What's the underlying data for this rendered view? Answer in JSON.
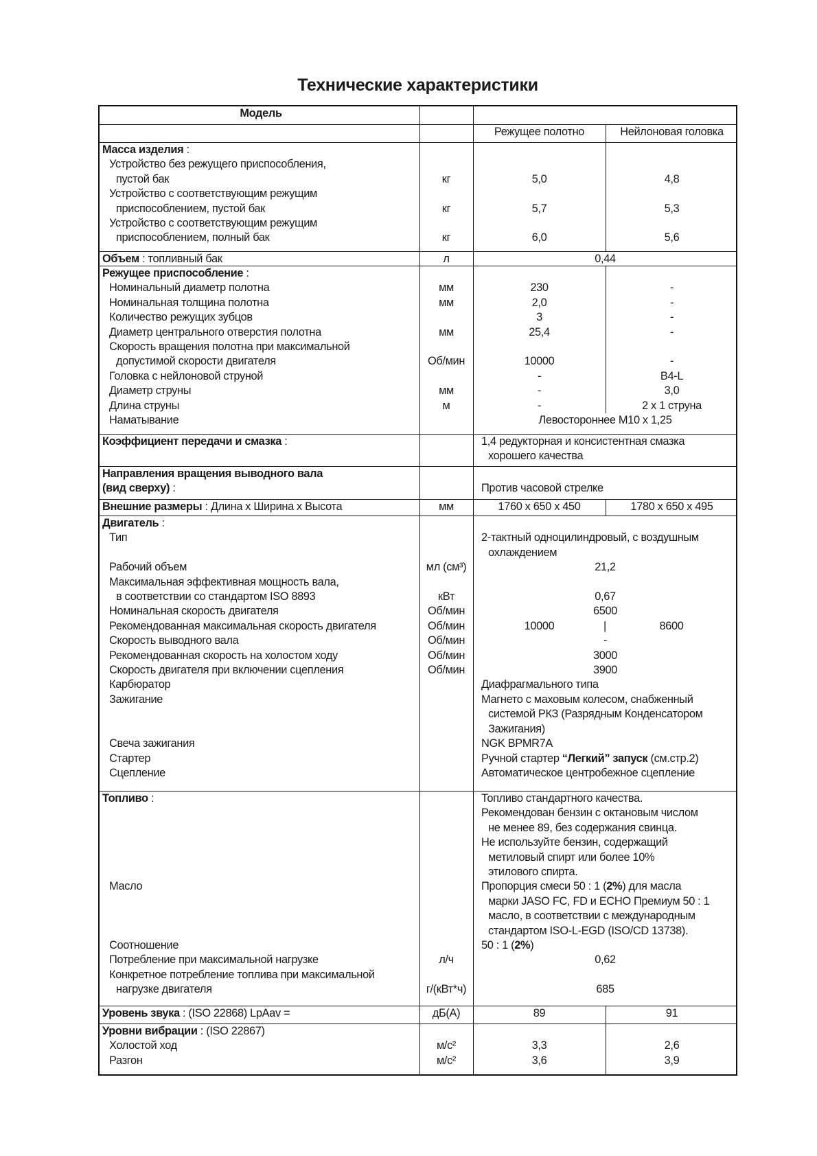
{
  "title": "Технические характеристики",
  "rows": [
    {
      "split": false,
      "lines": [
        {
          "l": [
            {
              "t": "Модель",
              "b": true
            }
          ]
        }
      ]
    },
    {
      "split": true,
      "lines": [
        {
          "a": "Режущее полотно",
          "b": "Нейлоновая головка"
        }
      ]
    },
    {
      "split": true,
      "lines": [
        {
          "l": [
            {
              "t": "Масса изделия",
              "b": true
            },
            {
              "t": " :"
            }
          ]
        },
        {
          "l": "Устройство без режущего приспособления,",
          "lvl": 1
        },
        {
          "l": "пустой бак",
          "lvl": 2,
          "u": "кг",
          "a": "5,0",
          "b": "4,8"
        },
        {
          "l": "Устройство с соответствующим режущим",
          "lvl": 1
        },
        {
          "l": "приспособлением, пустой бак",
          "lvl": 2,
          "u": "кг",
          "a": "5,7",
          "b": "5,3"
        },
        {
          "l": "Устройство с соответствующим режущим",
          "lvl": 1
        },
        {
          "l": "приспособлением, полный бак",
          "lvl": 2,
          "u": "кг",
          "a": "6,0",
          "b": "5,6"
        }
      ]
    },
    {
      "split": false,
      "lines": [
        {
          "l": [
            {
              "t": "Объем",
              "b": true
            },
            {
              "t": " : топливный бак"
            }
          ],
          "u": "л",
          "s": "0,44"
        }
      ]
    },
    {
      "split": true,
      "lines": [
        {
          "l": [
            {
              "t": "Режущее приспособление",
              "b": true
            },
            {
              "t": " :"
            }
          ]
        },
        {
          "l": "Номинальный диаметр полотна",
          "lvl": 1,
          "u": "мм",
          "a": "230",
          "b": "-"
        },
        {
          "l": "Номинальная толщина полотна",
          "lvl": 1,
          "u": "мм",
          "a": "2,0",
          "b": "-"
        },
        {
          "l": "Количество режущих зубцов",
          "lvl": 1,
          "a": "3",
          "b": "-"
        },
        {
          "l": "Диаметр центрального отверстия полотна",
          "lvl": 1,
          "u": "мм",
          "a": "25,4",
          "b": "-"
        },
        {
          "l": "Скорость вращения полотна при максимальной",
          "lvl": 1
        },
        {
          "l": "допустимой скорости двигателя",
          "lvl": 2,
          "u": "Об/мин",
          "a": "10000",
          "b": "-"
        },
        {
          "l": "Головка с нейлоновой струной",
          "lvl": 1,
          "a": "-",
          "b": "B4-L"
        },
        {
          "l": "Диаметр струны",
          "lvl": 1,
          "u": "мм",
          "a": "-",
          "b": "3,0"
        },
        {
          "l": "Длина струны",
          "lvl": 1,
          "u": "м",
          "a": "-",
          "b": "2 x 1 струна"
        },
        {
          "l": "Наматывание",
          "lvl": 1,
          "s": "Левостороннее M10 x 1,25"
        }
      ]
    },
    {
      "split": false,
      "lines": [
        {
          "l": [
            {
              "t": "Коэффициент передачи и смазка",
              "b": true
            },
            {
              "t": " :"
            }
          ],
          "t": "1,4 редукторная и консистентная смазка"
        },
        {
          "t": "хорошего качества",
          "ti": true
        }
      ]
    },
    {
      "split": false,
      "lines": [
        {
          "l": [
            {
              "t": "Направления вращения выводного вала",
              "b": true
            }
          ]
        },
        {
          "l": [
            {
              "t": " (вид сверху)",
              "b": true
            },
            {
              "t": " :"
            }
          ],
          "t": "Против часовой стрелке"
        }
      ]
    },
    {
      "split": true,
      "lines": [
        {
          "l": [
            {
              "t": "Внешние размеры",
              "b": true
            },
            {
              "t": " :  Длина x Ширина x Высота"
            }
          ],
          "u": "мм",
          "a": "1760 x 650 x 450",
          "b": "1780 x 650 x 495"
        }
      ]
    },
    {
      "split": false,
      "lines": [
        {
          "l": [
            {
              "t": "Двигатель",
              "b": true
            },
            {
              "t": " :"
            }
          ]
        },
        {
          "l": "Тип",
          "lvl": 1,
          "t": "2-тактный одноцилиндровый, с воздушным"
        },
        {
          "t": "охлаждением",
          "ti": true
        },
        {
          "l": "Рабочий объем",
          "lvl": 1,
          "u": "мл (см³)",
          "s": "21,2"
        },
        {
          "l": "Максимальная эффективная мощность вала,",
          "lvl": 1
        },
        {
          "l": "в соответствии со стандартом ISO 8893",
          "lvl": 2,
          "u": "кВт",
          "s": "0,67"
        },
        {
          "l": "Номинальная скорость двигателя",
          "lvl": 1,
          "u": "Об/мин",
          "s": "6500"
        },
        {
          "l": "Рекомендованная максимальная скорость двигателя",
          "lvl": 1,
          "u": "Об/мин",
          "a": "10000",
          "sep": "|",
          "b": "8600"
        },
        {
          "l": "Скорость выводного вала",
          "lvl": 1,
          "u": "Об/мин",
          "s": "-"
        },
        {
          "l": "Рекомендованная скорость на холостом ходу",
          "lvl": 1,
          "u": "Об/мин",
          "s": "3000"
        },
        {
          "l": "Скорость двигателя при включении сцепления",
          "lvl": 1,
          "u": "Об/мин",
          "s": "3900"
        },
        {
          "l": "Карбюратор",
          "lvl": 1,
          "t": "Диафрагмального типа"
        },
        {
          "l": "Зажигание",
          "lvl": 1,
          "t": "Магнето с маховым колесом, снабженный"
        },
        {
          "t": "системой РКЗ (Разрядным Конденсатором",
          "ti": true
        },
        {
          "t": "Зажигания)",
          "ti": true
        },
        {
          "l": "Свеча зажигания",
          "lvl": 1,
          "t": "NGK BPMR7A"
        },
        {
          "l": "Стартер",
          "lvl": 1,
          "t": [
            {
              "t": "Ручной стартер "
            },
            {
              "t": "“Легкий” запуск",
              "b": true
            },
            {
              "t": " (см.стр.2)"
            }
          ]
        },
        {
          "l": "Сцепление",
          "lvl": 1,
          "t": "Автоматическое центробежное сцепление"
        }
      ]
    },
    {
      "split": false,
      "lines": [
        {
          "l": [
            {
              "t": "Топливо",
              "b": true
            },
            {
              "t": " :"
            }
          ],
          "t": "Топливо стандартного качества."
        },
        {
          "t": "Рекомендован бензин с октановым числом"
        },
        {
          "t": "не менее 89, без содержания свинца.",
          "ti": true
        },
        {
          "t": "Не используйте бензин, содержащий"
        },
        {
          "t": "метиловый спирт или более 10%",
          "ti": true
        },
        {
          "t": "этилового спирта.",
          "ti": true
        },
        {
          "l": "Масло",
          "lvl": 1,
          "t": [
            {
              "t": "Пропорция смеси 50 : 1 ("
            },
            {
              "t": "2%",
              "b": true
            },
            {
              "t": ") для масла"
            }
          ]
        },
        {
          "t": "марки JASO FC, FD и ECHO Премиум 50 : 1",
          "ti": true
        },
        {
          "t": "масло, в соответствии с международным",
          "ti": true
        },
        {
          "t": "стандартом ISO-L-EGD (ISO/CD 13738).",
          "ti": true
        },
        {
          "l": "Соотношение",
          "lvl": 1,
          "t": [
            {
              "t": "50 : 1 ("
            },
            {
              "t": "2%",
              "b": true
            },
            {
              "t": ")"
            }
          ]
        },
        {
          "l": "Потребление при максимальной нагрузке",
          "lvl": 1,
          "u": "л/ч",
          "s": "0,62"
        },
        {
          "l": "Конкретное потребление топлива при максимальной",
          "lvl": 1
        },
        {
          "l": "нагрузке двигателя",
          "lvl": 2,
          "u": "г/(кВт*ч)",
          "s": "685"
        }
      ]
    },
    {
      "split": true,
      "lines": [
        {
          "l": [
            {
              "t": "Уровень звука",
              "b": true
            },
            {
              "t": " : (ISO 22868) LpAav ="
            }
          ],
          "u": "дБ(A)",
          "a": "89",
          "b": "91"
        }
      ]
    },
    {
      "split": true,
      "lines": [
        {
          "l": [
            {
              "t": "Уровни вибрации",
              "b": true
            },
            {
              "t": " : (ISO 22867)"
            }
          ]
        },
        {
          "l": "Холостой ход",
          "lvl": 1,
          "u": "м/с²",
          "a": "3,3",
          "b": "2,6"
        },
        {
          "l": "Разгон",
          "lvl": 1,
          "u": "м/с²",
          "a": "3,6",
          "b": "3,9"
        }
      ]
    }
  ]
}
